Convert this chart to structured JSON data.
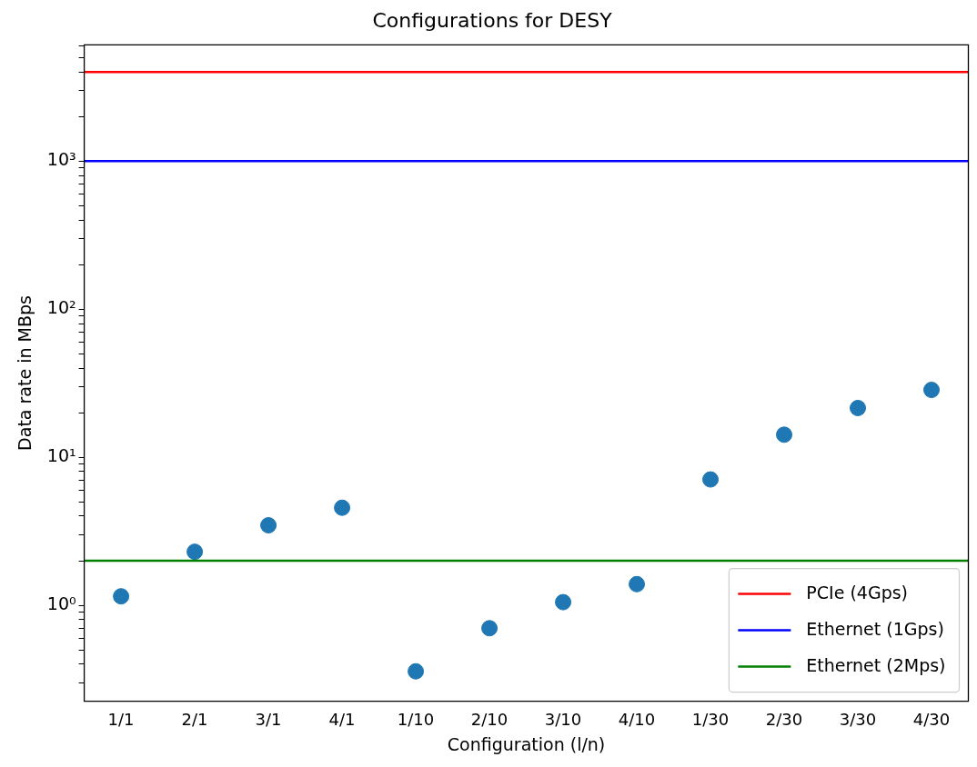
{
  "chart_data": {
    "type": "scatter",
    "title": "Configurations for DESY",
    "xlabel": "Configuration (l/n)",
    "ylabel": "Data rate in MBps",
    "categories": [
      "1/1",
      "2/1",
      "3/1",
      "4/1",
      "1/10",
      "2/10",
      "3/10",
      "4/10",
      "1/30",
      "2/30",
      "3/30",
      "4/30"
    ],
    "values": [
      1.15,
      2.3,
      3.47,
      4.56,
      0.358,
      0.7,
      1.05,
      1.39,
      7.08,
      14.2,
      21.5,
      28.5
    ],
    "color": "#1f77b4",
    "marker": "circle",
    "log": "y",
    "grid": false,
    "legend": "bottom right",
    "ylim": [
      0.225,
      6100
    ],
    "yticks": [
      {
        "value": 0.3,
        "label": null
      },
      {
        "value": 0.4,
        "label": null
      },
      {
        "value": 0.5,
        "label": null
      },
      {
        "value": 0.6,
        "label": null
      },
      {
        "value": 0.7,
        "label": null
      },
      {
        "value": 0.8,
        "label": null
      },
      {
        "value": 0.9,
        "label": null
      },
      {
        "value": 1,
        "label": "10⁰"
      },
      {
        "value": 2,
        "label": null
      },
      {
        "value": 3,
        "label": null
      },
      {
        "value": 4,
        "label": null
      },
      {
        "value": 5,
        "label": null
      },
      {
        "value": 6,
        "label": null
      },
      {
        "value": 7,
        "label": null
      },
      {
        "value": 8,
        "label": null
      },
      {
        "value": 9,
        "label": null
      },
      {
        "value": 10,
        "label": "10¹"
      },
      {
        "value": 20,
        "label": null
      },
      {
        "value": 30,
        "label": null
      },
      {
        "value": 40,
        "label": null
      },
      {
        "value": 50,
        "label": null
      },
      {
        "value": 60,
        "label": null
      },
      {
        "value": 70,
        "label": null
      },
      {
        "value": 80,
        "label": null
      },
      {
        "value": 90,
        "label": null
      },
      {
        "value": 100,
        "label": "10²"
      },
      {
        "value": 200,
        "label": null
      },
      {
        "value": 300,
        "label": null
      },
      {
        "value": 400,
        "label": null
      },
      {
        "value": 500,
        "label": null
      },
      {
        "value": 600,
        "label": null
      },
      {
        "value": 700,
        "label": null
      },
      {
        "value": 800,
        "label": null
      },
      {
        "value": 900,
        "label": null
      },
      {
        "value": 1000,
        "label": "10³"
      },
      {
        "value": 2000,
        "label": null
      },
      {
        "value": 3000,
        "label": null
      },
      {
        "value": 4000,
        "label": null
      },
      {
        "value": 5000,
        "label": null
      },
      {
        "value": 6000,
        "label": null
      }
    ],
    "ref_lines": [
      {
        "axis": "y",
        "value": 4000,
        "label": "PCIe (4Gps)",
        "color": "#ff0000"
      },
      {
        "axis": "y",
        "value": 1000,
        "label": "Ethernet (1Gps)",
        "color": "#0000ff"
      },
      {
        "axis": "y",
        "value": 2,
        "label": "Ethernet (2Mps)",
        "color": "#008000"
      }
    ]
  }
}
